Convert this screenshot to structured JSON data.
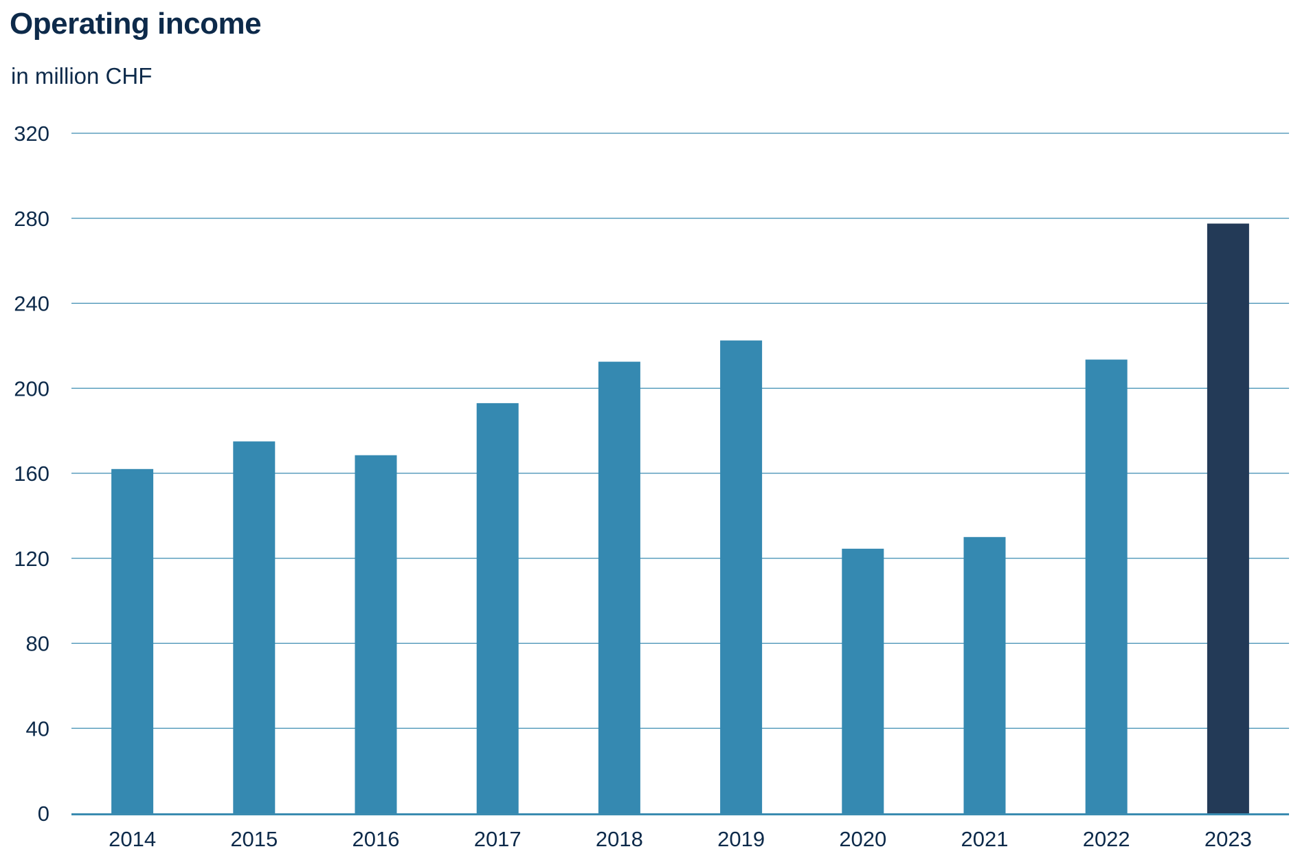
{
  "title": "Operating income",
  "subtitle": "in million CHF",
  "colors": {
    "bar": "#3589b1",
    "bar_highlight": "#233a57",
    "gridline": "#3a8bb0",
    "baseline": "#3a8bb0",
    "text": "#0d2a4a"
  },
  "chart_data": {
    "type": "bar",
    "categories": [
      "2014",
      "2015",
      "2016",
      "2017",
      "2018",
      "2019",
      "2020",
      "2021",
      "2022",
      "2023"
    ],
    "values": [
      162,
      175,
      168.5,
      193,
      212.5,
      222.5,
      124.5,
      130,
      213.5,
      277.5
    ],
    "highlight_category": "2023",
    "ylim": [
      0,
      320
    ],
    "yticks": [
      "0",
      "40",
      "80",
      "120",
      "160",
      "200",
      "240",
      "280",
      "320"
    ],
    "grid": true,
    "legend": "none"
  }
}
